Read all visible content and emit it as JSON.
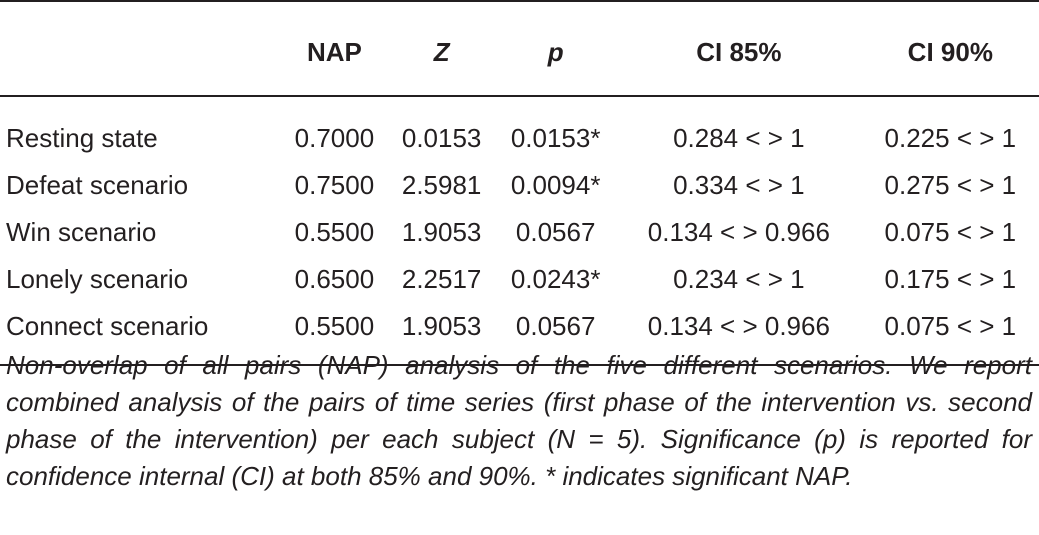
{
  "table": {
    "header": [
      "",
      "NAP",
      "Z",
      "p",
      "CI 85%",
      "CI 90%"
    ],
    "rows": [
      [
        "Resting state",
        "0.7000",
        "0.0153",
        "0.0153*",
        "0.284 < > 1",
        "0.225 < > 1"
      ],
      [
        "Defeat scenario",
        "0.7500",
        "2.5981",
        "0.0094*",
        "0.334 < > 1",
        "0.275 < > 1"
      ],
      [
        "Win scenario",
        "0.5500",
        "1.9053",
        "0.0567",
        "0.134 < > 0.966",
        "0.075 < > 1"
      ],
      [
        "Lonely scenario",
        "0.6500",
        "2.2517",
        "0.0243*",
        "0.234 < > 1",
        "0.175 < > 1"
      ],
      [
        "Connect scenario",
        "0.5500",
        "1.9053",
        "0.0567",
        "0.134 < > 0.966",
        "0.075 < > 1"
      ]
    ],
    "caption": "Non-overlap of all pairs (NAP) analysis of the five different scenarios. We report combined analysis of the pairs of time series (first phase of the intervention vs. second phase of the intervention) per each subject (N = 5). Significance (p) is reported for confidence internal (CI) at both 85% and 90%. * indicates significant NAP."
  }
}
